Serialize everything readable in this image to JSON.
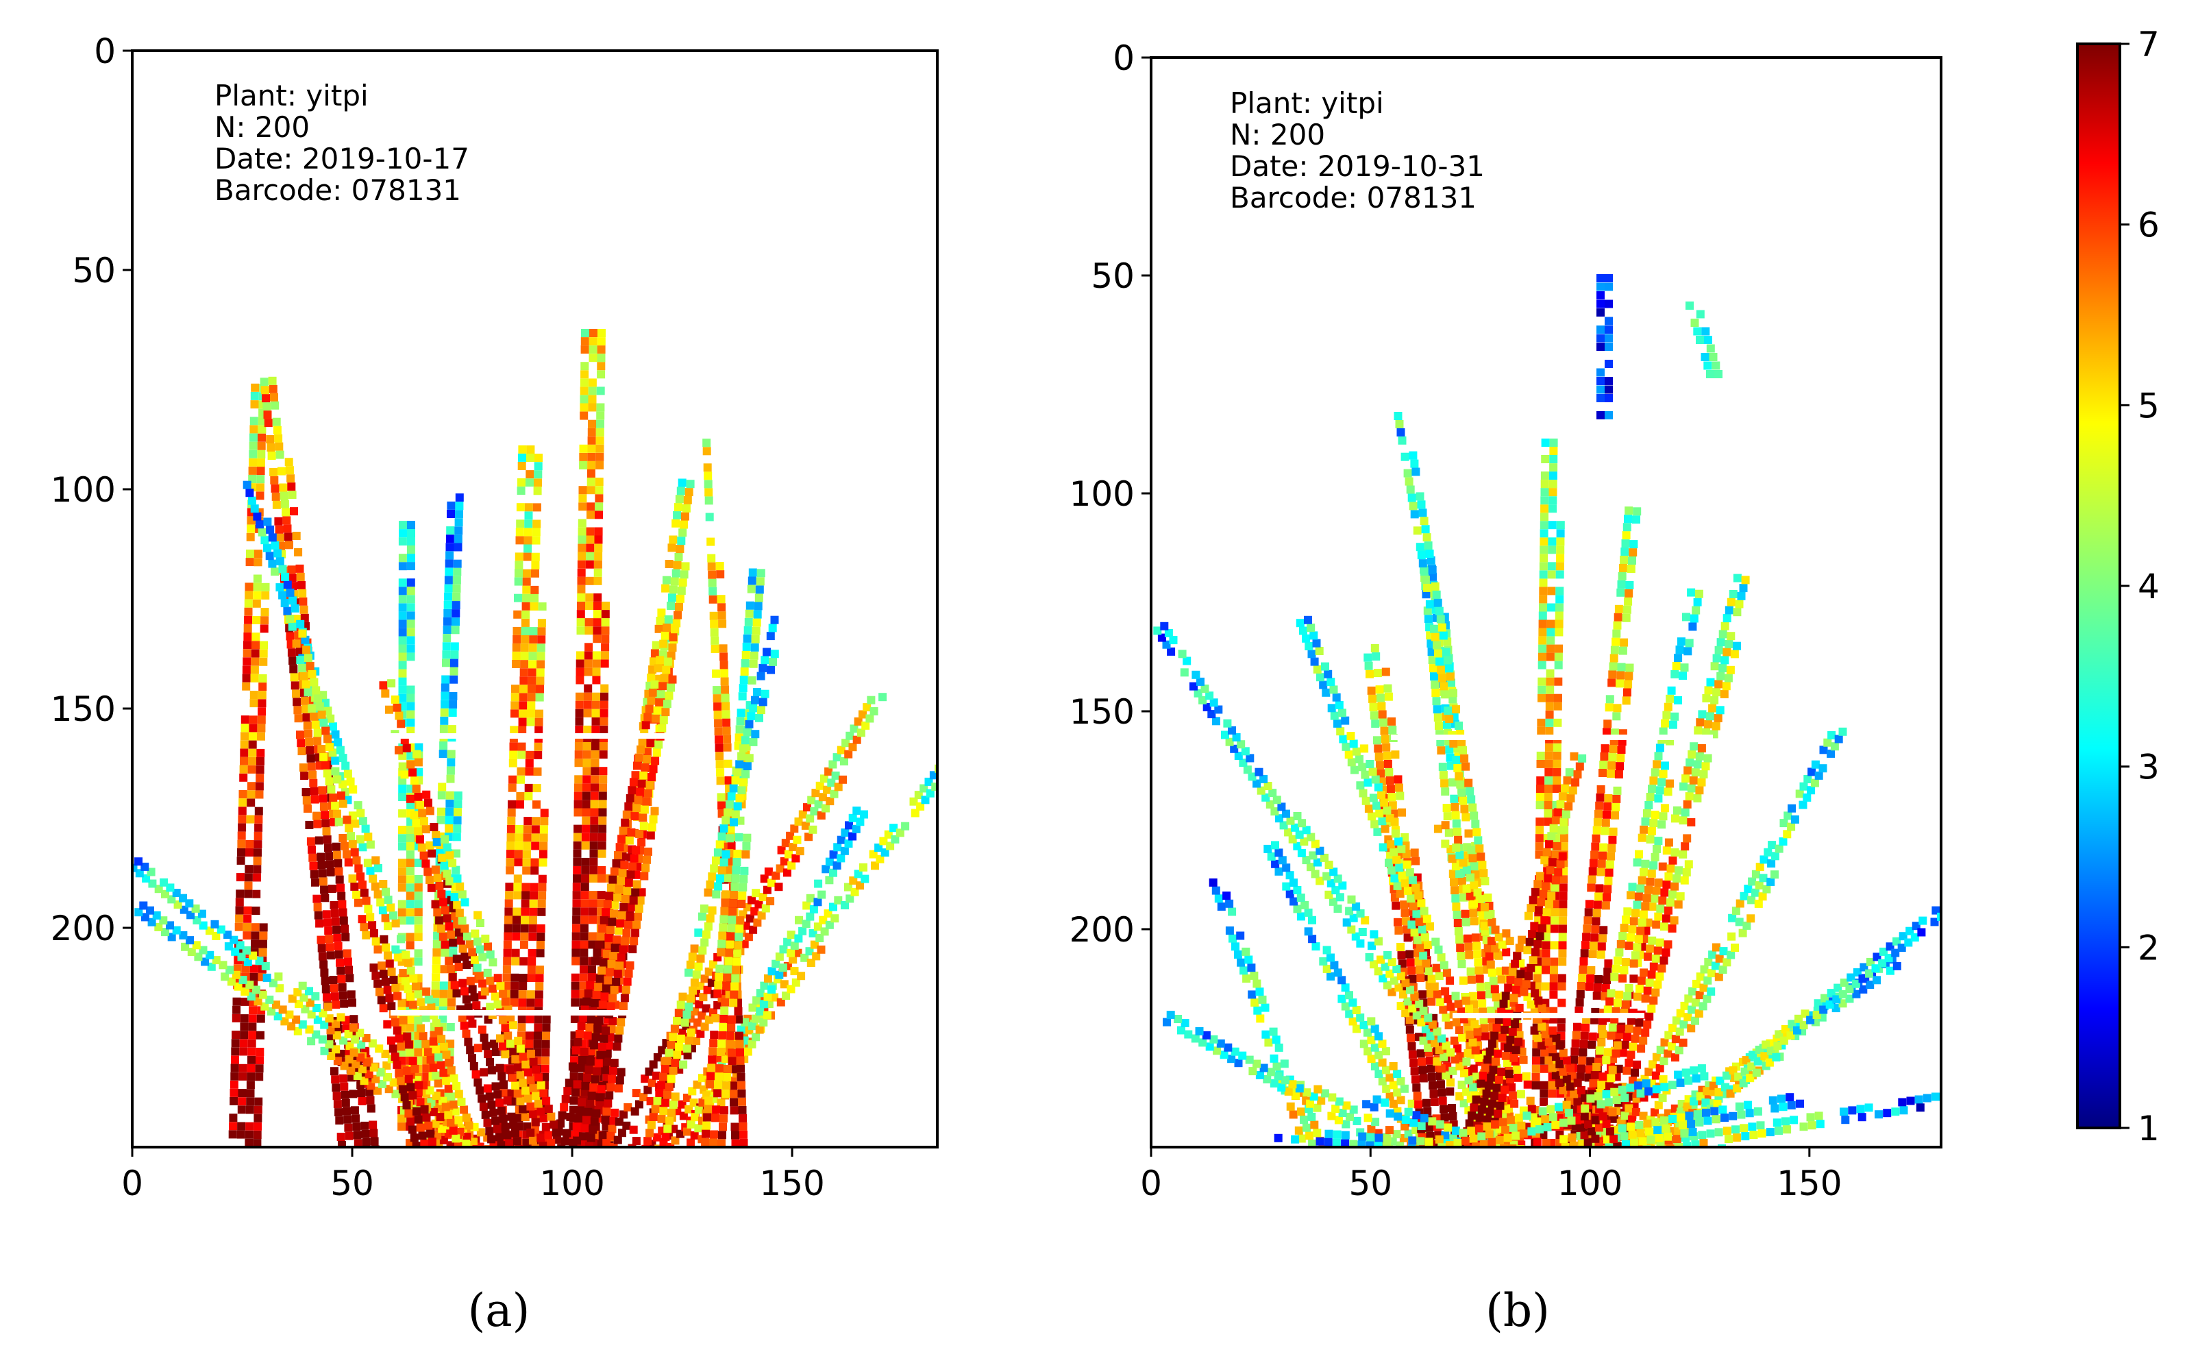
{
  "chart_data": [
    {
      "type": "heatmap",
      "panel_label": "(a)",
      "annotation_lines": [
        "Plant: yitpi",
        "N: 200",
        "Date: 2019-10-17",
        "Barcode: 078131"
      ],
      "xlim": [
        0,
        183
      ],
      "ylim": [
        250,
        0
      ],
      "xticks": [
        0,
        50,
        100,
        150
      ],
      "yticks": [
        0,
        50,
        100,
        150,
        200
      ],
      "colormap": "jet",
      "color_range": [
        1,
        7
      ],
      "description_of_values": "per-pixel values (1–7) on plant leaves; higher values near stem base (bottom center), lower values toward leaf tips"
    },
    {
      "type": "heatmap",
      "panel_label": "(b)",
      "annotation_lines": [
        "Plant: yitpi",
        "N: 200",
        "Date: 2019-10-31",
        "Barcode: 078131"
      ],
      "xlim": [
        0,
        180
      ],
      "ylim": [
        250,
        0
      ],
      "xticks": [
        0,
        50,
        100,
        150
      ],
      "yticks": [
        0,
        50,
        100,
        150,
        200
      ],
      "colormap": "jet",
      "color_range": [
        1,
        7
      ],
      "description_of_values": "per-pixel values (1–7); more leaves spread wider, more blue/cyan at leaf extremities, dark red at stem base"
    }
  ],
  "colorbar": {
    "min": 1,
    "max": 7,
    "ticks": [
      1,
      2,
      3,
      4,
      5,
      6,
      7
    ],
    "colormap": "jet",
    "colors": [
      "#00007f",
      "#0000ff",
      "#007fff",
      "#00ffff",
      "#7fff7f",
      "#ffff00",
      "#ff7f00",
      "#ff0000",
      "#7f0000"
    ]
  }
}
